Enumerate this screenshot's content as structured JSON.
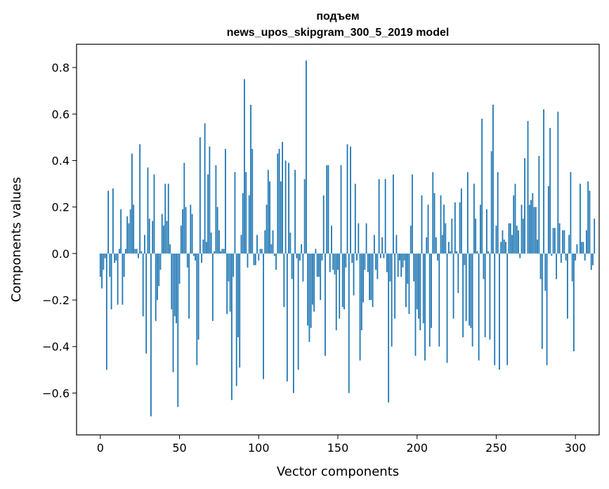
{
  "chart_data": {
    "type": "bar",
    "title_line1": "подъем",
    "title_line2": "news_upos_skipgram_300_5_2019 model",
    "xlabel": "Vector components",
    "ylabel": "Components values",
    "xlim": [
      -15,
      315
    ],
    "ylim": [
      -0.78,
      0.9
    ],
    "xticks": [
      0,
      50,
      100,
      150,
      200,
      250,
      300
    ],
    "xtick_labels": [
      "0",
      "50",
      "100",
      "150",
      "200",
      "250",
      "300"
    ],
    "yticks": [
      -0.6,
      -0.4,
      -0.2,
      0.0,
      0.2,
      0.4,
      0.6,
      0.8
    ],
    "ytick_labels": [
      "−0.6",
      "−0.4",
      "−0.2",
      "0.0",
      "0.2",
      "0.4",
      "0.6",
      "0.8"
    ],
    "grid": false,
    "bar_color": "#1f77b4",
    "x_start": 0,
    "values": [
      -0.1,
      -0.15,
      -0.07,
      -0.02,
      -0.5,
      0.27,
      -0.1,
      -0.24,
      0.28,
      -0.04,
      -0.03,
      -0.22,
      0.02,
      0.19,
      -0.22,
      -0.1,
      0.02,
      0.16,
      0.13,
      0.19,
      0.43,
      0.21,
      0.02,
      0.02,
      -0.02,
      0.47,
      0.01,
      -0.27,
      0.08,
      -0.43,
      0.37,
      0.15,
      -0.7,
      0.14,
      0.34,
      -0.29,
      -0.2,
      -0.14,
      -0.07,
      0.17,
      0.12,
      0.3,
      0.14,
      0.3,
      0.04,
      -0.24,
      -0.51,
      -0.27,
      -0.3,
      -0.66,
      -0.13,
      0.12,
      0.19,
      0.39,
      0.2,
      -0.06,
      -0.28,
      0.21,
      0.17,
      -0.01,
      -0.03,
      -0.48,
      -0.37,
      0.5,
      -0.04,
      0.06,
      0.56,
      0.05,
      0.34,
      0.46,
      0.09,
      -0.29,
      0.01,
      0.38,
      0.2,
      0.1,
      0.01,
      0.02,
      0.02,
      0.45,
      -0.26,
      -0.12,
      -0.25,
      -0.63,
      -0.1,
      0.35,
      -0.57,
      -0.36,
      -0.49,
      0.08,
      0.26,
      0.75,
      0.35,
      -0.06,
      0.25,
      0.64,
      0.45,
      -0.05,
      -0.05,
      0.08,
      -0.03,
      0.02,
      0.02,
      -0.54,
      0.1,
      0.21,
      0.36,
      0.31,
      0.04,
      0.1,
      -0.01,
      -0.07,
      0.43,
      0.45,
      0.31,
      0.48,
      -0.23,
      0.4,
      -0.55,
      0.39,
      0.09,
      -0.11,
      -0.6,
      0.36,
      -0.02,
      -0.5,
      -0.03,
      0.04,
      -0.12,
      0.32,
      0.83,
      -0.31,
      -0.38,
      -0.32,
      -0.22,
      -0.25,
      0.02,
      -0.1,
      -0.1,
      -0.2,
      -0.03,
      0.25,
      -0.44,
      0.38,
      0.38,
      -0.08,
      0.12,
      -0.07,
      -0.09,
      -0.33,
      -0.07,
      -0.28,
      0.38,
      -0.23,
      -0.24,
      -0.06,
      0.47,
      -0.6,
      0.46,
      -0.04,
      -0.18,
      0.3,
      -0.03,
      0.13,
      -0.46,
      -0.33,
      -0.21,
      -0.07,
      0.13,
      -0.08,
      -0.2,
      -0.2,
      -0.23,
      0.08,
      -0.07,
      -0.11,
      0.32,
      -0.02,
      0.07,
      -0.02,
      0.32,
      -0.08,
      -0.64,
      -0.12,
      -0.4,
      0.34,
      -0.28,
      0.08,
      -0.1,
      -0.03,
      -0.1,
      -0.06,
      -0.03,
      -0.23,
      -0.13,
      -0.26,
      0.12,
      0.34,
      -0.12,
      -0.44,
      -0.24,
      -0.28,
      -0.33,
      0.25,
      -0.3,
      -0.46,
      0.07,
      0.21,
      -0.4,
      -0.32,
      0.35,
      0.26,
      0.07,
      -0.03,
      -0.4,
      0.25,
      0.08,
      0.21,
      0.13,
      -0.47,
      0.05,
      0.01,
      0.15,
      -0.28,
      0.22,
      0.01,
      -0.17,
      0.22,
      0.28,
      -0.36,
      -0.05,
      -0.29,
      0.35,
      -0.31,
      -0.32,
      -0.4,
      0.3,
      0.15,
      0.01,
      -0.46,
      0.21,
      0.58,
      -0.11,
      -0.36,
      0.19,
      0.01,
      -0.37,
      0.44,
      0.64,
      -0.48,
      0.12,
      0.35,
      -0.5,
      0.05,
      0.1,
      0.06,
      0.05,
      -0.48,
      0.13,
      0.13,
      0.08,
      0.25,
      0.3,
      0.12,
      0.1,
      -0.02,
      0.21,
      0.15,
      0.41,
      0.0,
      0.57,
      0.21,
      0.23,
      0.26,
      0.2,
      0.2,
      0.06,
      0.42,
      -0.11,
      -0.41,
      0.62,
      -0.16,
      -0.48,
      0.29,
      0.54,
      -0.01,
      0.11,
      0.11,
      -0.11,
      0.61,
      0.13,
      -0.04,
      0.1,
      0.1,
      -0.03,
      -0.28,
      0.08,
      0.35,
      -0.12,
      -0.42,
      -0.03,
      0.04,
      0.0,
      0.3,
      0.05,
      0.05,
      -0.03,
      0.1,
      0.31,
      0.27,
      -0.07,
      -0.05,
      0.15
    ]
  }
}
